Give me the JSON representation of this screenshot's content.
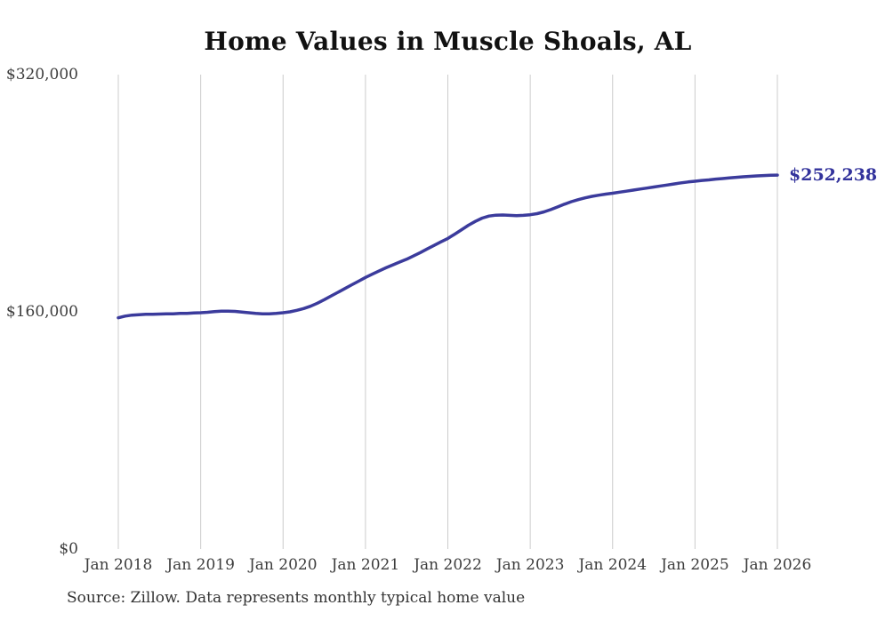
{
  "chart_data": {
    "type": "line",
    "title": "Home Values in Muscle Shoals, AL",
    "source_note": "Source: Zillow. Data represents monthly typical home value",
    "end_label": "$252,238",
    "end_label_color": "#33339c",
    "line_color": "#3b3b9c",
    "grid_color": "#cccccc",
    "axis_label_color": "#3d3d3d",
    "grid": "vertical-only",
    "legend": "none",
    "ylim": [
      0,
      320000
    ],
    "y_ticks": {
      "values": [
        0,
        160000,
        320000
      ],
      "labels": [
        "$0",
        "$160,000",
        "$320,000"
      ]
    },
    "x_start": "Jan 2018",
    "x_end": "Jan 2026",
    "x_interval": "monthly",
    "x_ticks": [
      "Jan 2018",
      "Jan 2019",
      "Jan 2020",
      "Jan 2021",
      "Jan 2022",
      "Jan 2023",
      "Jan 2024",
      "Jan 2025",
      "Jan 2026"
    ],
    "series": [
      {
        "name": "Monthly typical home value",
        "final_value": 252238,
        "values": [
          156000,
          157100,
          157800,
          158100,
          158300,
          158400,
          158500,
          158600,
          158700,
          158900,
          159000,
          159200,
          159400,
          159700,
          160100,
          160400,
          160500,
          160300,
          159900,
          159400,
          158900,
          158600,
          158700,
          159000,
          159400,
          160000,
          161000,
          162200,
          163800,
          165800,
          168200,
          170700,
          173200,
          175700,
          178200,
          180700,
          183200,
          185400,
          187600,
          189700,
          191700,
          193600,
          195500,
          197700,
          200000,
          202400,
          204800,
          207200,
          209500,
          212400,
          215400,
          218400,
          221000,
          223200,
          224600,
          225200,
          225300,
          225100,
          224900,
          225100,
          225500,
          226200,
          227400,
          229000,
          230800,
          232600,
          234300,
          235700,
          236900,
          237900,
          238700,
          239400,
          240000,
          240700,
          241400,
          242100,
          242800,
          243500,
          244200,
          244900,
          245600,
          246300,
          247000,
          247600,
          248100,
          248600,
          249000,
          249500,
          249900,
          250300,
          250700,
          251100,
          251400,
          251700,
          251900,
          252100,
          252238
        ]
      }
    ]
  }
}
